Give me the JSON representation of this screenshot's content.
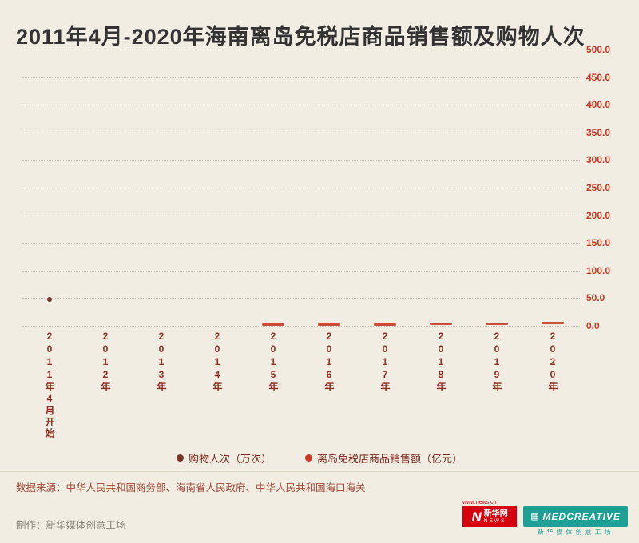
{
  "title": "2011年4月-2020年海南离岛免税店商品销售额及购物人次",
  "colors": {
    "background": "#f2ede3",
    "title_text": "#333333",
    "y_axis_text": "#c43a22",
    "x_axis_text": "#8e2e1f",
    "legend_text": "#7a2a1e",
    "source_text": "#a04a36",
    "producer_text": "#8a8578",
    "xinhua_red": "#d7000f",
    "med_teal": "#1fa095"
  },
  "chart_data": {
    "type": "scatter",
    "title": "2011年4月-2020年海南离岛免税店商品销售额及购物人次",
    "categories": [
      "2011年4月开始",
      "2012年",
      "2013年",
      "2014年",
      "2015年",
      "2016年",
      "2017年",
      "2018年",
      "2019年",
      "2020年"
    ],
    "ylim": [
      0,
      500
    ],
    "ytick_step": 50,
    "ytick_labels": [
      "0.0",
      "50.0",
      "100.0",
      "150.0",
      "200.0",
      "250.0",
      "300.0",
      "350.0",
      "400.0",
      "450.0",
      "500.0"
    ],
    "grid": "dotted-horizontal",
    "legend_position": "bottom",
    "series": [
      {
        "name": "购物人次（万次）",
        "marker": "dot",
        "color": "#7a352a",
        "values": [
          48,
          0,
          0,
          0,
          0,
          0,
          0,
          0,
          0,
          0
        ]
      },
      {
        "name": "离岛免税店商品销售额（亿元）",
        "marker": "dash",
        "color": "#c43a22",
        "values": [
          0,
          0,
          0,
          0,
          0.8,
          1.2,
          1.8,
          2.2,
          3.5,
          4.5
        ]
      }
    ],
    "legend": [
      {
        "label": "购物人次（万次）",
        "color": "#7a352a"
      },
      {
        "label": "离岛免税店商品销售额（亿元）",
        "color": "#c43a22"
      }
    ]
  },
  "source": "数据来源：中华人民共和国商务部、海南省人民政府、中华人民共和国海口海关",
  "producer": "制作：新华媒体创意工场",
  "logos": {
    "news_url": "www.news.cn",
    "xinhua_n": "N",
    "xinhua_cn": "新华网",
    "xinhua_en": "NEWS",
    "med_icon": "▦",
    "med_name": "MEDCREATIVE",
    "med_sub": "新华媒体创意工场"
  }
}
